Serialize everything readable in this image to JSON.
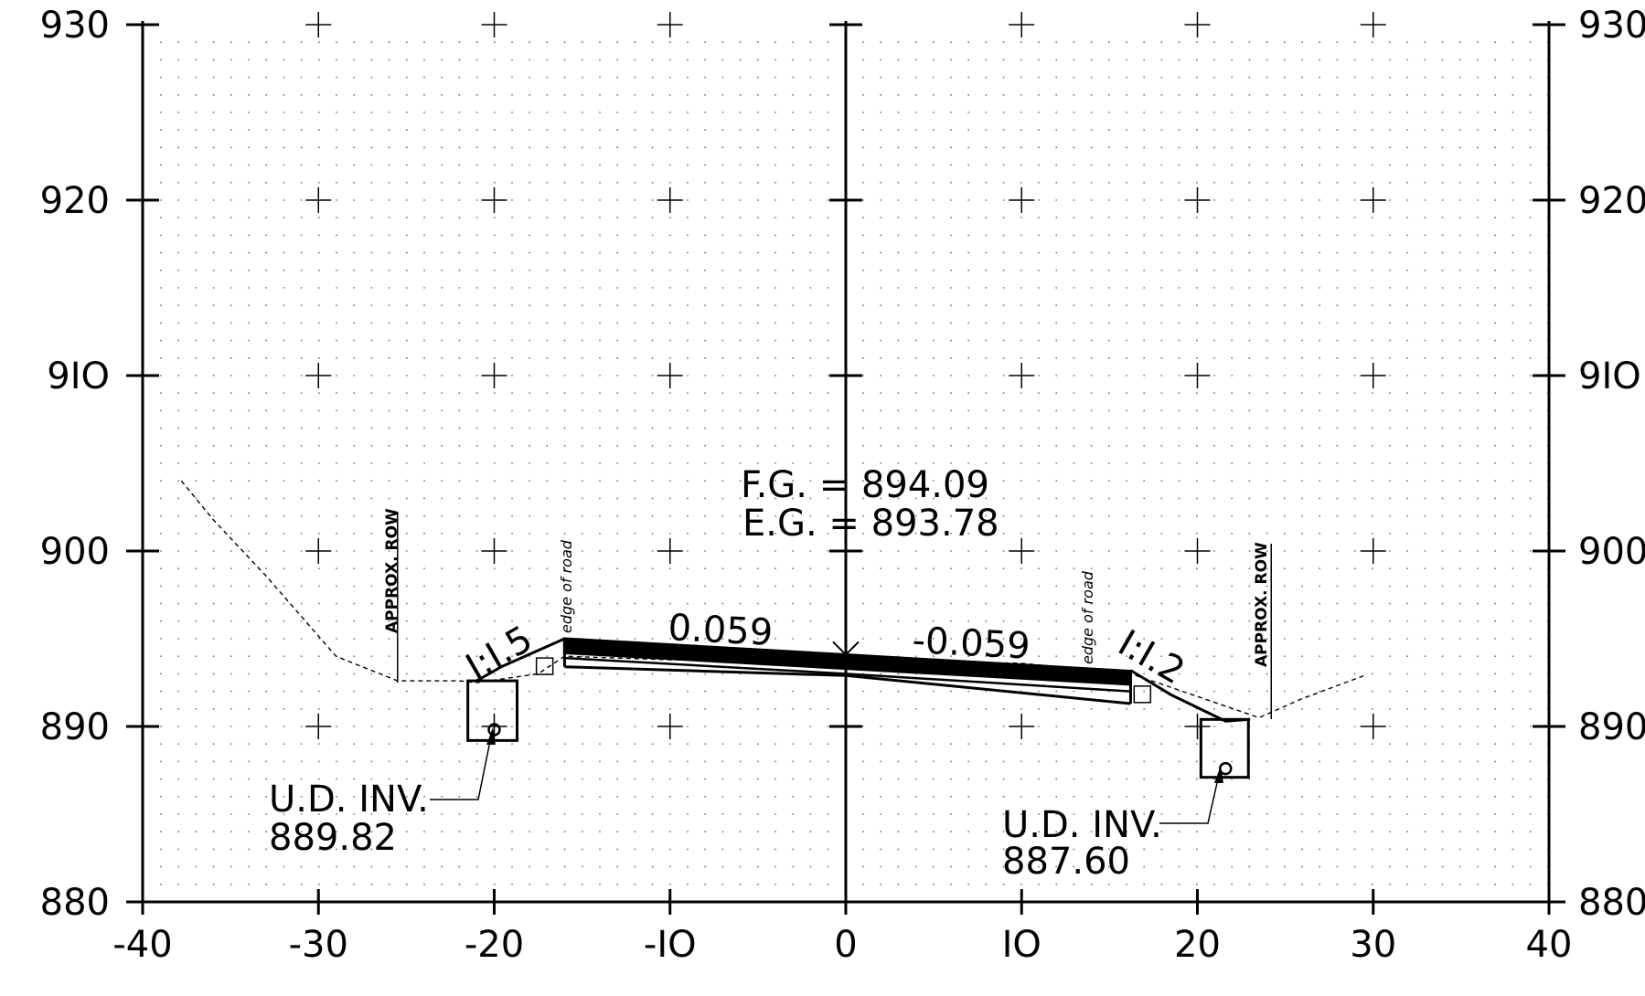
{
  "chart_data": {
    "type": "cross-section",
    "xlim": [
      -40,
      40
    ],
    "ylim": [
      880,
      930
    ],
    "x_ticks": [
      -40,
      -30,
      -20,
      -10,
      0,
      10,
      20,
      30,
      40
    ],
    "x_tick_labels": [
      "-40",
      "-30",
      "-20",
      "-IO",
      "0",
      "IO",
      "20",
      "30",
      "40"
    ],
    "y_ticks": [
      880,
      890,
      900,
      910,
      920,
      930
    ],
    "y_tick_labels_left": [
      "880",
      "890",
      "900",
      "9IO",
      "920",
      "930"
    ],
    "y_tick_labels_right": [
      "880",
      "890",
      "900",
      "9IO",
      "920",
      "930"
    ],
    "grid": "dotted",
    "existing_ground": [
      [
        -37.8,
        904.0
      ],
      [
        -36,
        901.8
      ],
      [
        -33,
        898.6
      ],
      [
        -29,
        894.0
      ],
      [
        -28,
        893.6
      ],
      [
        -25.5,
        892.6
      ],
      [
        -22,
        892.6
      ],
      [
        -21,
        892.5
      ],
      [
        -17.5,
        893.0
      ],
      [
        -16,
        894.0
      ],
      [
        -10,
        893.8
      ],
      [
        0,
        893.78
      ],
      [
        10,
        893.6
      ],
      [
        16.2,
        893.0
      ],
      [
        18,
        892.4
      ],
      [
        23.5,
        890.5
      ],
      [
        26,
        891.6
      ],
      [
        29.5,
        892.9
      ]
    ],
    "proposed_section": {
      "left_shoulder": [
        [
          -21,
          892.6
        ],
        [
          -19.6,
          893.4
        ],
        [
          -16,
          895.0
        ]
      ],
      "pavement_top": [
        [
          -16,
          895.0
        ],
        [
          0,
          894.09
        ],
        [
          16.2,
          893.15
        ]
      ],
      "pavement_bottom": [
        [
          -16,
          894.2
        ],
        [
          0,
          893.3
        ],
        [
          16.2,
          892.4
        ]
      ],
      "base_bottom": [
        [
          -16,
          893.4
        ],
        [
          0,
          892.9
        ],
        [
          16.2,
          891.3
        ]
      ],
      "right_slope": [
        [
          16.2,
          893.2
        ],
        [
          18.5,
          891.8
        ],
        [
          21.6,
          890.3
        ],
        [
          23.0,
          890.4
        ]
      ]
    },
    "underdrains": [
      {
        "x": -20,
        "invert": 889.82,
        "trench": [
          [
            -21.5,
            892.6
          ],
          [
            -18.7,
            889.2
          ]
        ],
        "label_1": "U.D. INV.",
        "label_2": "889.82"
      },
      {
        "x": 21.6,
        "invert": 887.6,
        "trench": [
          [
            20.2,
            890.4
          ],
          [
            22.9,
            887.1
          ]
        ],
        "label_1": "U.D. INV.",
        "label_2": "887.60"
      }
    ],
    "elevations": {
      "fg": "F.G. =  894.09",
      "eg": "E.G. =  893.78"
    },
    "slopes": {
      "left": "0.059",
      "right": "-0.059"
    },
    "side_slopes": {
      "left": "I:I.5",
      "right": "I:I.2"
    },
    "row_labels": [
      {
        "text": "APPROX. ROW",
        "x": -25.5
      },
      {
        "text": "APPROX. ROW",
        "x": 24.2
      }
    ],
    "edge_labels": [
      {
        "text": "edge of road",
        "x": -16.2
      },
      {
        "text": "edge of road",
        "x": 13.5
      }
    ]
  }
}
